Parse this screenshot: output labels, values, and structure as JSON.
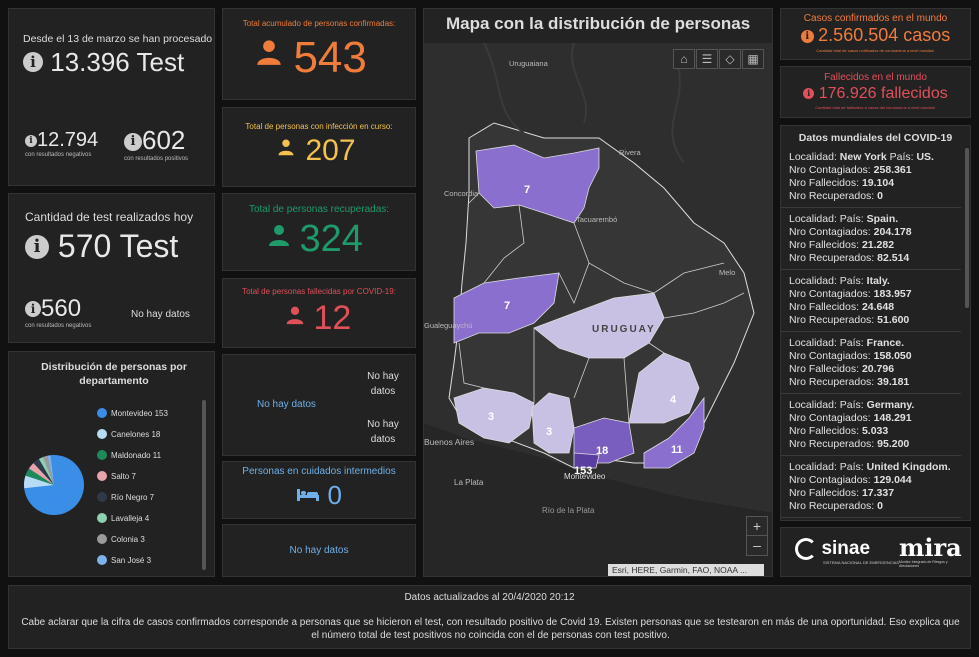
{
  "tests": {
    "since_label": "Desde el 13 de marzo se han procesado",
    "total": "13.396 Test",
    "negative_value": "12.794",
    "negative_label": "con resultados negativos",
    "positive_value": "602",
    "positive_label": "con resultados positivos"
  },
  "tests_today": {
    "label": "Cantidad de test realizados hoy",
    "total": "570 Test",
    "negative_value": "560",
    "negative_label": "con resultados negativos",
    "no_data": "No hay datos"
  },
  "pie": {
    "title": "Distribución de personas por departamento",
    "legend": [
      {
        "label": "Montevideo 153",
        "color": "#3a8ee6"
      },
      {
        "label": "Canelones 18",
        "color": "#b9dcf5"
      },
      {
        "label": "Maldonado 11",
        "color": "#1e8a5a"
      },
      {
        "label": "Salto 7",
        "color": "#e8a4a8"
      },
      {
        "label": "Río Negro 7",
        "color": "#2e3a4a"
      },
      {
        "label": "Lavalleja 4",
        "color": "#8fd0b0"
      },
      {
        "label": "Colonia 3",
        "color": "#9a9a9a"
      },
      {
        "label": "San José 3",
        "color": "#7fb2e8"
      }
    ]
  },
  "confirmed": {
    "label": "Total acumulado de personas confirmadas:",
    "value": "543",
    "color": "#f07c3c"
  },
  "active": {
    "label": "Total de personas con infección en curso:",
    "value": "207",
    "color": "#f2c14e"
  },
  "recovered": {
    "label": "Total de personas recuperadas:",
    "value": "324",
    "color": "#1f9a6a"
  },
  "deceased": {
    "label": "Total de personas fallecidas por COVID-19:",
    "value": "12",
    "color": "#e0505a"
  },
  "no_data_block": {
    "left": "No hay datos",
    "right1": "No hay datos",
    "right2": "No hay datos"
  },
  "intermediate": {
    "label": "Personas en cuidados intermedios",
    "value": "0"
  },
  "no_data_bottom": "No hay datos",
  "map": {
    "title": "Mapa con la distribución de personas",
    "attribution": "Esri, HERE, Garmin, FAO, NOAA ...",
    "country_label": "URUGUAY",
    "places": [
      "Uruguaiana",
      "Rivera",
      "Concordia",
      "Tacuarembó",
      "Melo",
      "Gualeguaychú",
      "Buenos Aires",
      "La Plata",
      "Montevideo",
      "Río de la Plata"
    ],
    "counts": [
      "7",
      "7",
      "3",
      "3",
      "18",
      "153",
      "4",
      "11"
    ],
    "zoom_in": "+",
    "zoom_out": "–"
  },
  "world_cases": {
    "label": "Casos confirmados en el mundo",
    "value": "2.560.504 casos",
    "note": "Cantidad total de casos notificados de coronavirus a nivel mundial."
  },
  "world_deaths": {
    "label": "Fallecidos en el mundo",
    "value": "176.926 fallecidos",
    "note": "Cantidad total de fallecidos a causa del coronavirus a nivel mundial."
  },
  "world_list": {
    "title": "Datos mundiales del COVID-19",
    "items": [
      {
        "loc": "Localidad:",
        "city": "New York",
        "pais": "País:",
        "country": "US.",
        "cont_label": "Nro Contagiados:",
        "cont": "258.361",
        "fall_label": "Nro Fallecidos:",
        "fall": "19.104",
        "rec_label": "Nro Recuperados:",
        "rec": "0"
      },
      {
        "loc": "Localidad:",
        "city": "",
        "pais": "País:",
        "country": "Spain.",
        "cont_label": "Nro Contagiados:",
        "cont": "204.178",
        "fall_label": "Nro Fallecidos:",
        "fall": "21.282",
        "rec_label": "Nro Recuperados:",
        "rec": "82.514"
      },
      {
        "loc": "Localidad:",
        "city": "",
        "pais": "País:",
        "country": "Italy.",
        "cont_label": "Nro Contagiados:",
        "cont": "183.957",
        "fall_label": "Nro Fallecidos:",
        "fall": "24.648",
        "rec_label": "Nro Recuperados:",
        "rec": "51.600"
      },
      {
        "loc": "Localidad:",
        "city": "",
        "pais": "País:",
        "country": "France.",
        "cont_label": "Nro Contagiados:",
        "cont": "158.050",
        "fall_label": "Nro Fallecidos:",
        "fall": "20.796",
        "rec_label": "Nro Recuperados:",
        "rec": "39.181"
      },
      {
        "loc": "Localidad:",
        "city": "",
        "pais": "País:",
        "country": "Germany.",
        "cont_label": "Nro Contagiados:",
        "cont": "148.291",
        "fall_label": "Nro Fallecidos:",
        "fall": "5.033",
        "rec_label": "Nro Recuperados:",
        "rec": "95.200"
      },
      {
        "loc": "Localidad:",
        "city": "",
        "pais": "País:",
        "country": "United Kingdom.",
        "cont_label": "Nro Contagiados:",
        "cont": "129.044",
        "fall_label": "Nro Fallecidos:",
        "fall": "17.337",
        "rec_label": "Nro Recuperados:",
        "rec": "0"
      }
    ]
  },
  "logos": {
    "sinae": "sinae",
    "sinae_sub": "SISTEMA NACIONAL DE EMERGENCIAS",
    "mira": "mira",
    "mira_sub": "Monitor Integrado de Riesgos y Afectaciones"
  },
  "footer": {
    "updated": "Datos actualizados al 20/4/2020 20:12",
    "note": "Cabe aclarar que la cifra de casos confirmados corresponde a personas que se hicieron el test, con resultado positivo de Covid 19. Existen personas que se testearon en más de una oportunidad. Eso explica que el número total de test positivos no coincida con el de personas con test positivo."
  }
}
